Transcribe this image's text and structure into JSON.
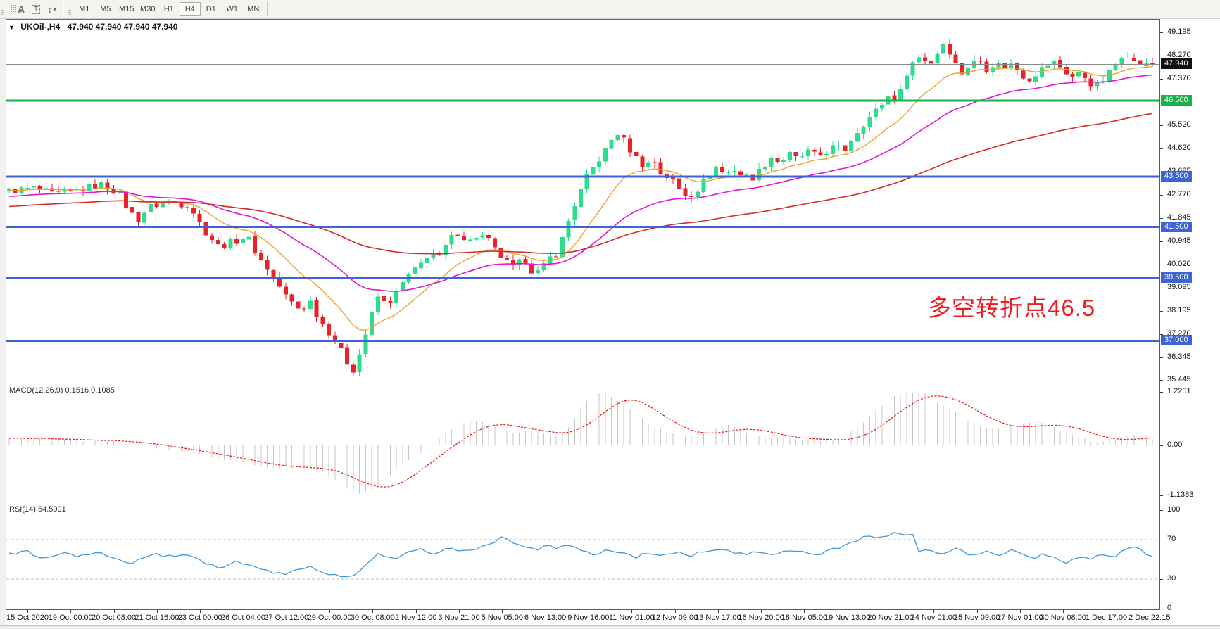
{
  "toolbar": {
    "tools": [
      {
        "name": "snap-grid",
        "glyph": "F"
      },
      {
        "name": "text-label",
        "glyph": "A"
      },
      {
        "name": "text-tool",
        "glyph": "T"
      },
      {
        "name": "arrange",
        "glyph": "↕"
      }
    ],
    "timeframes": [
      "M1",
      "M5",
      "M15",
      "M30",
      "H1",
      "H4",
      "D1",
      "W1",
      "MN"
    ],
    "active_timeframe": "H4"
  },
  "chart": {
    "symbol_title": "UKOil-,H4",
    "quotes": "47.940 47.940 47.940 47.940",
    "current_price": "47.940",
    "annotation": {
      "text": "多空转折点46.5",
      "color": "#ee1c23"
    },
    "price_ticks": [
      "49.195",
      "48.270",
      "47.370",
      "45.520",
      "44.620",
      "43.685",
      "42.770",
      "41.845",
      "40.945",
      "40.020",
      "39.095",
      "38.195",
      "37.270",
      "36.345",
      "35.445"
    ],
    "hlines": [
      {
        "price": 46.5,
        "label": "46.500",
        "color": "#17b24b"
      },
      {
        "price": 43.5,
        "label": "43.500",
        "color": "#3e63d6"
      },
      {
        "price": 41.5,
        "label": "41.500",
        "color": "#3e63d6"
      },
      {
        "price": 39.5,
        "label": "39.500",
        "color": "#3e63d6"
      },
      {
        "price": 37.0,
        "label": "37.000",
        "color": "#3e63d6"
      }
    ],
    "time_labels": [
      "15 Oct 2020",
      "19 Oct 00:00",
      "20 Oct 08:00",
      "21 Oct 16:00",
      "23 Oct 00:00",
      "26 Oct 04:00",
      "27 Oct 12:00",
      "29 Oct 00:00",
      "30 Oct 08:00",
      "2 Nov 12:00",
      "3 Nov 21:00",
      "5 Nov 05:00",
      "6 Nov 13:00",
      "9 Nov 16:00",
      "11 Nov 01:00",
      "12 Nov 09:00",
      "13 Nov 17:00",
      "16 Nov 20:00",
      "18 Nov 05:00",
      "19 Nov 13:00",
      "20 Nov 21:00",
      "24 Nov 01:00",
      "25 Nov 09:00",
      "27 Nov 01:00",
      "30 Nov 08:00",
      "1 Dec 17:00",
      "2 Dec 22:15"
    ]
  },
  "macd": {
    "label": "MACD(12,26,9) 0.1516 0.1085",
    "axis": [
      "1.2251",
      "0.00",
      "-1.1383"
    ],
    "axis_values": [
      1.2251,
      0,
      -1.1383
    ]
  },
  "rsi": {
    "label": "RSI(14) 54.5001",
    "axis": [
      "100",
      "70",
      "30",
      "0"
    ],
    "axis_values": [
      100,
      70,
      30,
      0
    ],
    "levels": [
      70,
      30
    ]
  },
  "colors": {
    "bull": "#2cdd8c",
    "bear": "#ea2127",
    "ma_fast": "#efa32a",
    "ma_mid": "#e414d2",
    "ma_slow": "#d42a2a",
    "price_line": "#8a8a8a",
    "badge_current_bg": "#101010",
    "macd_bar": "#c6c6c6",
    "macd_signal": "#e81212",
    "rsi_line": "#3f97dd",
    "rsi_level": "#bdbdbd"
  },
  "chart_data": {
    "type": "candlestick",
    "symbol": "UKOil-",
    "timeframe": "H4",
    "bars": 187,
    "y_domain": [
      35.4,
      49.7
    ],
    "macd_domain": [
      -1.1383,
      1.2251
    ],
    "macd_current": 0.1516,
    "macd_signal_current": 0.1085,
    "rsi_current": 54.5001,
    "last_price": 47.94,
    "levels": {
      "green_line": 46.5,
      "blue_lines": [
        43.5,
        41.5,
        39.5,
        37.0
      ]
    },
    "price_path": [
      [
        0.0,
        42.9
      ],
      [
        0.02,
        43.05
      ],
      [
        0.04,
        42.8
      ],
      [
        0.06,
        42.95
      ],
      [
        0.08,
        43.2
      ],
      [
        0.095,
        42.9
      ],
      [
        0.105,
        42.15
      ],
      [
        0.112,
        41.75
      ],
      [
        0.122,
        42.3
      ],
      [
        0.14,
        42.5
      ],
      [
        0.158,
        42.35
      ],
      [
        0.17,
        41.4
      ],
      [
        0.183,
        40.75
      ],
      [
        0.198,
        40.95
      ],
      [
        0.208,
        41.15
      ],
      [
        0.218,
        40.35
      ],
      [
        0.23,
        39.6
      ],
      [
        0.243,
        38.7
      ],
      [
        0.255,
        38.2
      ],
      [
        0.263,
        38.6
      ],
      [
        0.272,
        37.8
      ],
      [
        0.283,
        37.15
      ],
      [
        0.293,
        36.4
      ],
      [
        0.3,
        35.75
      ],
      [
        0.307,
        36.55
      ],
      [
        0.315,
        37.75
      ],
      [
        0.323,
        38.8
      ],
      [
        0.33,
        38.4
      ],
      [
        0.338,
        38.85
      ],
      [
        0.348,
        39.55
      ],
      [
        0.358,
        39.9
      ],
      [
        0.368,
        40.55
      ],
      [
        0.376,
        40.25
      ],
      [
        0.385,
        41.0
      ],
      [
        0.393,
        41.3
      ],
      [
        0.402,
        40.9
      ],
      [
        0.41,
        41.2
      ],
      [
        0.418,
        41.05
      ],
      [
        0.426,
        40.5
      ],
      [
        0.434,
        40.15
      ],
      [
        0.442,
        39.85
      ],
      [
        0.45,
        40.3
      ],
      [
        0.457,
        39.8
      ],
      [
        0.464,
        39.7
      ],
      [
        0.472,
        40.25
      ],
      [
        0.48,
        40.5
      ],
      [
        0.488,
        41.6
      ],
      [
        0.496,
        42.55
      ],
      [
        0.504,
        43.35
      ],
      [
        0.512,
        43.95
      ],
      [
        0.52,
        44.4
      ],
      [
        0.527,
        44.95
      ],
      [
        0.533,
        45.25
      ],
      [
        0.54,
        44.75
      ],
      [
        0.548,
        44.25
      ],
      [
        0.556,
        43.9
      ],
      [
        0.563,
        44.2
      ],
      [
        0.571,
        43.55
      ],
      [
        0.579,
        43.45
      ],
      [
        0.587,
        42.95
      ],
      [
        0.594,
        42.7
      ],
      [
        0.602,
        43.0
      ],
      [
        0.61,
        43.45
      ],
      [
        0.618,
        43.85
      ],
      [
        0.626,
        43.6
      ],
      [
        0.634,
        43.8
      ],
      [
        0.642,
        43.5
      ],
      [
        0.65,
        43.45
      ],
      [
        0.658,
        43.8
      ],
      [
        0.666,
        44.3
      ],
      [
        0.674,
        44.05
      ],
      [
        0.682,
        44.4
      ],
      [
        0.69,
        44.15
      ],
      [
        0.698,
        44.5
      ],
      [
        0.706,
        44.3
      ],
      [
        0.714,
        44.45
      ],
      [
        0.722,
        44.7
      ],
      [
        0.73,
        44.5
      ],
      [
        0.738,
        45.05
      ],
      [
        0.746,
        45.55
      ],
      [
        0.754,
        45.9
      ],
      [
        0.762,
        46.3
      ],
      [
        0.77,
        46.75
      ],
      [
        0.777,
        46.45
      ],
      [
        0.784,
        47.55
      ],
      [
        0.791,
        48.05
      ],
      [
        0.798,
        48.3
      ],
      [
        0.805,
        47.9
      ],
      [
        0.812,
        48.4
      ],
      [
        0.818,
        48.85
      ],
      [
        0.825,
        48.25
      ],
      [
        0.832,
        47.55
      ],
      [
        0.84,
        47.9
      ],
      [
        0.848,
        48.15
      ],
      [
        0.855,
        47.75
      ],
      [
        0.862,
        48.0
      ],
      [
        0.87,
        47.85
      ],
      [
        0.878,
        47.95
      ],
      [
        0.885,
        47.55
      ],
      [
        0.892,
        47.35
      ],
      [
        0.9,
        47.65
      ],
      [
        0.908,
        47.9
      ],
      [
        0.915,
        48.05
      ],
      [
        0.922,
        47.7
      ],
      [
        0.93,
        47.45
      ],
      [
        0.938,
        47.6
      ],
      [
        0.945,
        47.2
      ],
      [
        0.952,
        47.1
      ],
      [
        0.96,
        47.45
      ],
      [
        0.968,
        47.95
      ],
      [
        0.976,
        48.5
      ],
      [
        0.983,
        48.05
      ],
      [
        0.991,
        47.9
      ],
      [
        1.0,
        47.94
      ]
    ],
    "macd_main": [
      [
        0.0,
        0.15
      ],
      [
        0.04,
        0.13
      ],
      [
        0.08,
        0.1
      ],
      [
        0.11,
        0.03
      ],
      [
        0.14,
        -0.1
      ],
      [
        0.17,
        -0.22
      ],
      [
        0.2,
        -0.38
      ],
      [
        0.23,
        -0.52
      ],
      [
        0.255,
        -0.48
      ],
      [
        0.275,
        -0.62
      ],
      [
        0.295,
        -0.98
      ],
      [
        0.308,
        -1.13
      ],
      [
        0.32,
        -0.95
      ],
      [
        0.335,
        -0.62
      ],
      [
        0.35,
        -0.32
      ],
      [
        0.365,
        -0.08
      ],
      [
        0.38,
        0.25
      ],
      [
        0.395,
        0.5
      ],
      [
        0.408,
        0.58
      ],
      [
        0.42,
        0.48
      ],
      [
        0.432,
        0.36
      ],
      [
        0.445,
        0.3
      ],
      [
        0.458,
        0.34
      ],
      [
        0.47,
        0.28
      ],
      [
        0.48,
        0.22
      ],
      [
        0.49,
        0.42
      ],
      [
        0.5,
        0.85
      ],
      [
        0.51,
        1.15
      ],
      [
        0.518,
        1.22
      ],
      [
        0.528,
        1.1
      ],
      [
        0.54,
        0.9
      ],
      [
        0.552,
        0.65
      ],
      [
        0.565,
        0.42
      ],
      [
        0.578,
        0.28
      ],
      [
        0.59,
        0.2
      ],
      [
        0.602,
        0.25
      ],
      [
        0.615,
        0.38
      ],
      [
        0.628,
        0.45
      ],
      [
        0.64,
        0.35
      ],
      [
        0.652,
        0.22
      ],
      [
        0.665,
        0.15
      ],
      [
        0.678,
        0.18
      ],
      [
        0.69,
        0.14
      ],
      [
        0.702,
        0.1
      ],
      [
        0.712,
        0.08
      ],
      [
        0.722,
        0.12
      ],
      [
        0.735,
        0.28
      ],
      [
        0.748,
        0.55
      ],
      [
        0.76,
        0.85
      ],
      [
        0.772,
        1.08
      ],
      [
        0.785,
        1.2
      ],
      [
        0.795,
        1.22
      ],
      [
        0.805,
        1.12
      ],
      [
        0.818,
        0.92
      ],
      [
        0.83,
        0.7
      ],
      [
        0.842,
        0.52
      ],
      [
        0.855,
        0.4
      ],
      [
        0.868,
        0.36
      ],
      [
        0.88,
        0.44
      ],
      [
        0.892,
        0.52
      ],
      [
        0.902,
        0.5
      ],
      [
        0.912,
        0.42
      ],
      [
        0.925,
        0.28
      ],
      [
        0.938,
        0.16
      ],
      [
        0.95,
        0.08
      ],
      [
        0.962,
        0.1
      ],
      [
        0.975,
        0.2
      ],
      [
        0.988,
        0.28
      ],
      [
        1.0,
        0.15
      ]
    ],
    "rsi_path": [
      [
        0.0,
        55
      ],
      [
        0.015,
        58
      ],
      [
        0.03,
        51
      ],
      [
        0.045,
        56
      ],
      [
        0.06,
        53
      ],
      [
        0.075,
        57
      ],
      [
        0.09,
        52
      ],
      [
        0.105,
        44
      ],
      [
        0.115,
        50
      ],
      [
        0.13,
        55
      ],
      [
        0.145,
        52
      ],
      [
        0.158,
        56
      ],
      [
        0.17,
        46
      ],
      [
        0.185,
        42
      ],
      [
        0.2,
        48
      ],
      [
        0.212,
        44
      ],
      [
        0.225,
        38
      ],
      [
        0.24,
        35
      ],
      [
        0.252,
        40
      ],
      [
        0.263,
        44
      ],
      [
        0.275,
        37
      ],
      [
        0.288,
        33
      ],
      [
        0.3,
        31
      ],
      [
        0.31,
        42
      ],
      [
        0.322,
        55
      ],
      [
        0.335,
        50
      ],
      [
        0.348,
        56
      ],
      [
        0.36,
        60
      ],
      [
        0.372,
        56
      ],
      [
        0.385,
        62
      ],
      [
        0.398,
        58
      ],
      [
        0.41,
        61
      ],
      [
        0.422,
        66
      ],
      [
        0.43,
        72
      ],
      [
        0.44,
        67
      ],
      [
        0.45,
        64
      ],
      [
        0.46,
        60
      ],
      [
        0.47,
        64
      ],
      [
        0.48,
        60
      ],
      [
        0.49,
        66
      ],
      [
        0.5,
        60
      ],
      [
        0.512,
        55
      ],
      [
        0.524,
        60
      ],
      [
        0.536,
        57
      ],
      [
        0.548,
        52
      ],
      [
        0.56,
        57
      ],
      [
        0.572,
        53
      ],
      [
        0.584,
        58
      ],
      [
        0.596,
        54
      ],
      [
        0.608,
        58
      ],
      [
        0.62,
        61
      ],
      [
        0.632,
        57
      ],
      [
        0.644,
        54
      ],
      [
        0.656,
        58
      ],
      [
        0.668,
        55
      ],
      [
        0.68,
        60
      ],
      [
        0.692,
        57
      ],
      [
        0.704,
        54
      ],
      [
        0.716,
        58
      ],
      [
        0.728,
        63
      ],
      [
        0.74,
        69
      ],
      [
        0.752,
        74
      ],
      [
        0.76,
        71
      ],
      [
        0.768,
        74
      ],
      [
        0.776,
        77
      ],
      [
        0.784,
        74
      ],
      [
        0.79,
        76
      ],
      [
        0.796,
        57
      ],
      [
        0.806,
        60
      ],
      [
        0.816,
        55
      ],
      [
        0.826,
        61
      ],
      [
        0.836,
        57
      ],
      [
        0.846,
        53
      ],
      [
        0.856,
        58
      ],
      [
        0.866,
        54
      ],
      [
        0.876,
        59
      ],
      [
        0.886,
        55
      ],
      [
        0.896,
        51
      ],
      [
        0.906,
        56
      ],
      [
        0.916,
        51
      ],
      [
        0.926,
        47
      ],
      [
        0.936,
        53
      ],
      [
        0.946,
        50
      ],
      [
        0.956,
        55
      ],
      [
        0.966,
        52
      ],
      [
        0.976,
        59
      ],
      [
        0.986,
        62
      ],
      [
        0.994,
        56
      ],
      [
        1.0,
        54.5
      ]
    ]
  }
}
